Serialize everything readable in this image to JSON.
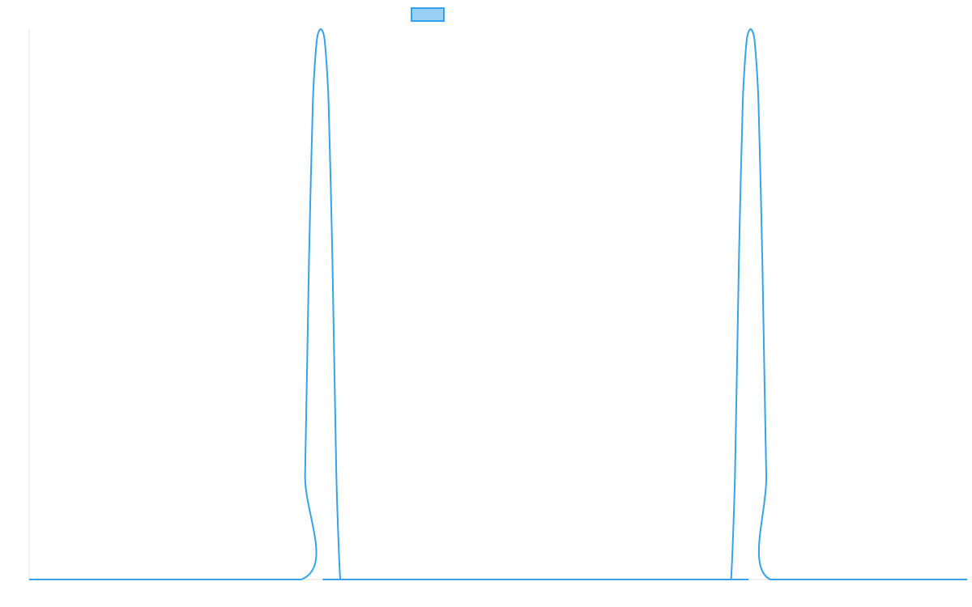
{
  "chart_data": {
    "type": "line",
    "title": "",
    "xlabel": "",
    "ylabel": "",
    "legend": {
      "placement": "top-center",
      "entries": [
        ""
      ]
    },
    "grid": false,
    "xlim": [
      0,
      1200
    ],
    "ylim": [
      0,
      1
    ],
    "series": [
      {
        "x": [
          0,
          348,
          353,
          358,
          363,
          368,
          373,
          378,
          383,
          388,
          393,
          398,
          403,
          893,
          898,
          903,
          908,
          913,
          918,
          923,
          928,
          933,
          938,
          943,
          948,
          1200
        ],
        "y": [
          0,
          0,
          0.19,
          0.58,
          0.87,
          0.98,
          1.0,
          0.98,
          0.87,
          0.58,
          0.19,
          0,
          0,
          0,
          0,
          0.19,
          0.58,
          0.87,
          0.98,
          1.0,
          0.98,
          0.87,
          0.58,
          0.19,
          0,
          0
        ]
      }
    ]
  },
  "colors": {
    "line": "#36a2eb",
    "legend_fill": "#9ad0f5",
    "axis": "#e6e6e6"
  }
}
